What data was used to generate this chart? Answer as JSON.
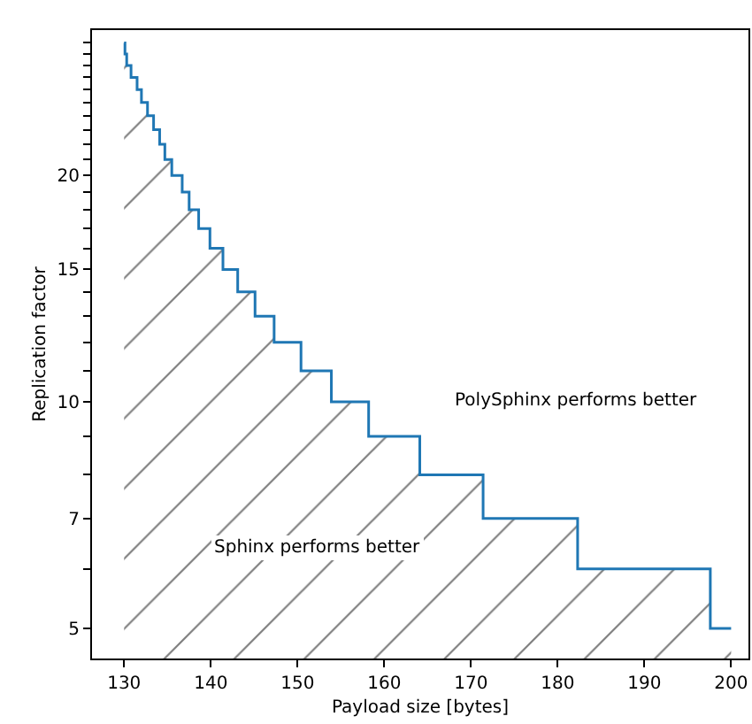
{
  "chart_data": {
    "type": "step",
    "xlabel": "Payload size [bytes]",
    "ylabel": "Replication factor",
    "log": "y",
    "x": [
      130,
      130.1,
      130.3,
      130.8,
      131.5,
      132.0,
      132.7,
      133.4,
      134.1,
      134.7,
      135.5,
      136.7,
      137.5,
      138.6,
      139.9,
      141.4,
      143.1,
      145.1,
      147.3,
      150.4,
      153.9,
      158.2,
      164.1,
      171.4,
      182.3,
      197.6,
      200
    ],
    "series": [
      {
        "type": "area",
        "color": "#000000",
        "values": [
          30,
          29,
          28,
          27,
          26,
          25,
          24,
          23,
          22,
          21,
          20,
          19,
          18,
          17,
          16,
          15,
          14,
          13,
          12,
          11,
          10,
          9,
          8,
          7,
          6,
          5,
          5
        ]
      },
      {
        "color": "#1f77b4",
        "values": [
          30,
          29,
          28,
          27,
          26,
          25,
          24,
          23,
          22,
          21,
          20,
          19,
          18,
          17,
          16,
          15,
          14,
          13,
          12,
          11,
          10,
          9,
          8,
          7,
          6,
          5,
          5
        ]
      }
    ],
    "xlim": [
      126.3,
      202
    ],
    "xticks": [
      130,
      140,
      150,
      160,
      170,
      180,
      190,
      200
    ],
    "ylim": [
      4.56,
      31.2
    ],
    "yticks": [
      5,
      {
        "value": 6,
        "label": null
      },
      7,
      {
        "value": 8,
        "label": null
      },
      {
        "value": 9,
        "label": null
      },
      10,
      {
        "value": 11,
        "label": null
      },
      {
        "value": 12,
        "label": null
      },
      {
        "value": 13,
        "label": null
      },
      {
        "value": 14,
        "label": null
      },
      15,
      {
        "value": 16,
        "label": null
      },
      {
        "value": 17,
        "label": null
      },
      {
        "value": 18,
        "label": null
      },
      {
        "value": 19,
        "label": null
      },
      20,
      {
        "value": 21,
        "label": null
      },
      {
        "value": 22,
        "label": null
      },
      {
        "value": 23,
        "label": null
      },
      {
        "value": 24,
        "label": null
      },
      {
        "value": 25,
        "label": null
      },
      {
        "value": 26,
        "label": null
      },
      {
        "value": 27,
        "label": null
      },
      {
        "value": 28,
        "label": null
      },
      {
        "value": 29,
        "label": null
      },
      {
        "value": 30,
        "label": null
      }
    ],
    "annotations": [
      "PolySphinx performs better",
      "Sphinx performs better"
    ]
  }
}
